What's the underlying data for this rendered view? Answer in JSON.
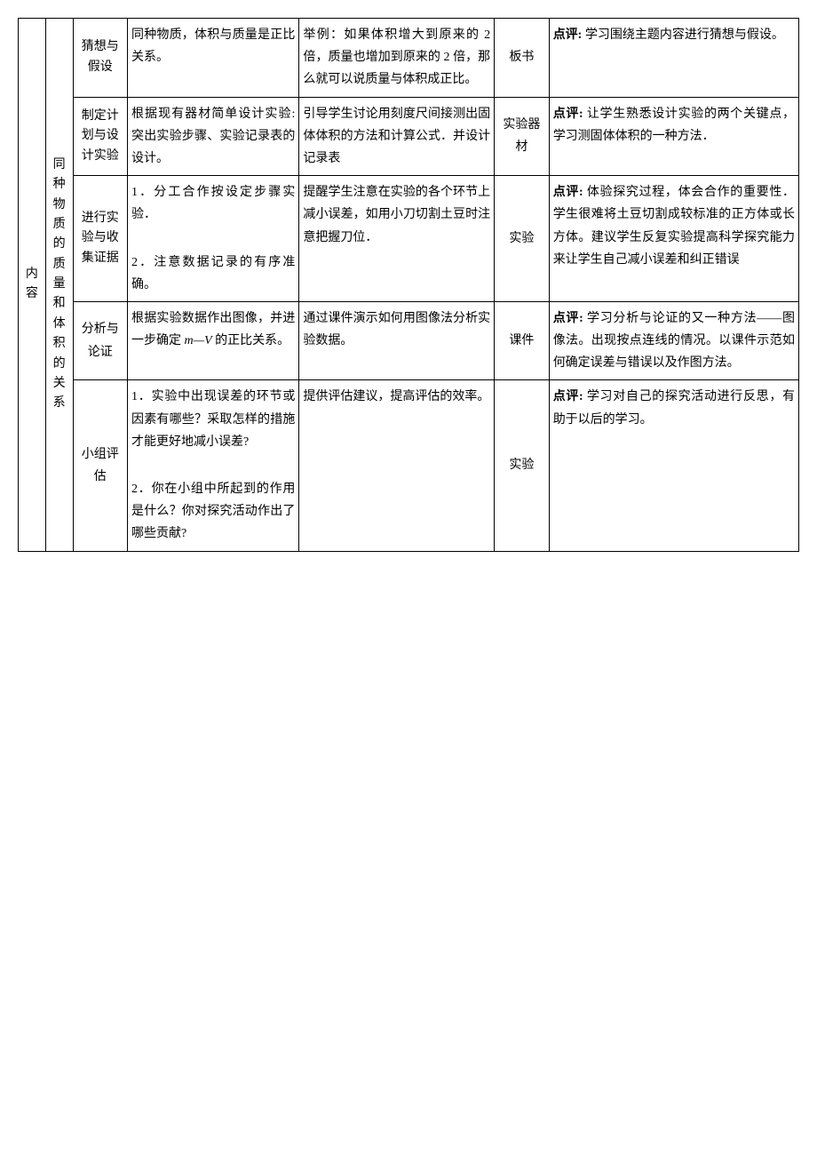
{
  "col1_header": "内容",
  "col2_header": "同种物质的质量和体积的关系",
  "rows": [
    {
      "step": "猜想与假设",
      "student": "同种物质，体积与质量是正比关系。",
      "teacher": "举例：如果体积增大到原来的 2 倍，质量也增加到原来的 2 倍，那么就可以说质量与体积成正比。",
      "media": "板书",
      "comment_label": "点评:",
      "comment": " 学习围绕主题内容进行猜想与假设。"
    },
    {
      "step": "制定计划与设计实验",
      "student": "根据现有器材简单设计实验: 突出实验步骤、实验记录表的设计。",
      "teacher": "引导学生讨论用刻度尺间接测出固体体积的方法和计算公式．并设计记录表",
      "media": "实验器材",
      "comment_label": "点评:",
      "comment": " 让学生熟悉设计实验的两个关键点，学习测固体体积的一种方法．"
    },
    {
      "step": "进行实验与收集证据",
      "student_p1": "1．分工合作按设定步骤实验．",
      "student_p2": "2．注意数据记录的有序准确。",
      "teacher": "提醒学生注意在实验的各个环节上减小误差，如用小刀切割土豆时注意把握刀位．",
      "media": "实验",
      "comment_label": "点评:",
      "comment": " 体验探究过程，体会合作的重要性．学生很难将土豆切割成较标准的正方体或长方体。建议学生反复实验提高科学探究能力来让学生自己减小误差和纠正错误"
    },
    {
      "step": "分析与论证",
      "student_pre": "根据实验数据作出图像，并进一步确定 ",
      "student_mv": "m—V",
      "student_post": " 的正比关系。",
      "teacher": "通过课件演示如何用图像法分析实验数据。",
      "media": "课件",
      "comment_label": "点评:",
      "comment": " 学习分析与论证的又一种方法——图像法。出现按点连线的情况。以课件示范如何确定误差与错误以及作图方法。"
    },
    {
      "step": "小组评估",
      "student_p1": "1．实验中出现误差的环节或因素有哪些？采取怎样的措施才能更好地减小误差?",
      "student_p2": "2．你在小组中所起到的作用是什么？你对探究活动作出了哪些贡献?",
      "teacher": "提供评估建议，提高评估的效率。",
      "media": "实验",
      "comment_label": "点评:",
      "comment": " 学习对自己的探究活动进行反思，有助于以后的学习。"
    }
  ]
}
